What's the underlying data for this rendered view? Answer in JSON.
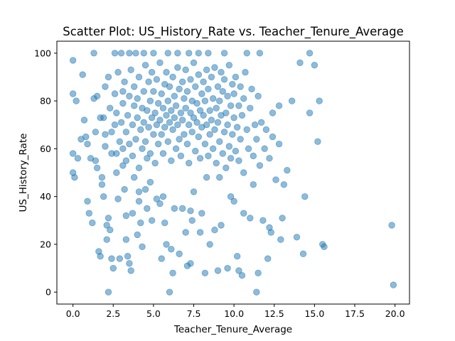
{
  "chart_data": {
    "type": "scatter",
    "title": "Scatter Plot: US_History_Rate vs. Teacher_Tenure_Average",
    "xlabel": "Teacher_Tenure_Average",
    "ylabel": "US_History_Rate",
    "xlim": [
      -1.0,
      20.9
    ],
    "ylim": [
      -5,
      105
    ],
    "xticks": [
      0.0,
      2.5,
      5.0,
      7.5,
      10.0,
      12.5,
      15.0,
      17.5,
      20.0
    ],
    "xtick_labels": [
      "0.0",
      "2.5",
      "5.0",
      "7.5",
      "10.0",
      "12.5",
      "15.0",
      "17.5",
      "20.0"
    ],
    "yticks": [
      0,
      20,
      40,
      60,
      80,
      100
    ],
    "ytick_labels": [
      "0",
      "20",
      "40",
      "60",
      "80",
      "100"
    ],
    "grid": false,
    "marker_color": "#1f77b4",
    "marker_alpha": 0.5,
    "series": [
      {
        "values": [
          [
            0.0,
            97
          ],
          [
            0.0,
            83
          ],
          [
            0.0,
            58
          ],
          [
            0.0,
            50
          ],
          [
            0.1,
            48
          ],
          [
            0.2,
            80
          ],
          [
            0.3,
            56
          ],
          [
            0.5,
            64
          ],
          [
            0.6,
            91
          ],
          [
            0.7,
            72
          ],
          [
            0.8,
            65
          ],
          [
            0.9,
            62
          ],
          [
            0.9,
            38
          ],
          [
            1.0,
            33
          ],
          [
            1.1,
            56
          ],
          [
            1.2,
            29
          ],
          [
            1.3,
            100
          ],
          [
            1.3,
            81
          ],
          [
            1.4,
            67
          ],
          [
            1.4,
            55
          ],
          [
            1.5,
            52
          ],
          [
            1.6,
            17
          ],
          [
            1.7,
            15
          ],
          [
            1.8,
            45
          ],
          [
            1.9,
            73
          ],
          [
            1.9,
            40
          ],
          [
            2.0,
            86
          ],
          [
            2.0,
            61
          ],
          [
            2.1,
            28
          ],
          [
            2.1,
            22
          ],
          [
            2.2,
            31
          ],
          [
            2.2,
            0
          ],
          [
            2.3,
            26
          ],
          [
            2.4,
            14
          ],
          [
            2.5,
            10
          ],
          [
            2.6,
            100
          ],
          [
            2.6,
            70
          ],
          [
            2.7,
            58
          ],
          [
            2.8,
            39
          ],
          [
            2.9,
            14
          ],
          [
            3.0,
            100
          ],
          [
            3.1,
            84
          ],
          [
            3.1,
            53
          ],
          [
            3.2,
            43
          ],
          [
            3.3,
            32
          ],
          [
            3.3,
            22
          ],
          [
            3.4,
            15
          ],
          [
            3.5,
            100
          ],
          [
            3.5,
            12
          ],
          [
            3.6,
            9
          ],
          [
            3.7,
            33
          ],
          [
            3.8,
            48
          ],
          [
            3.9,
            100
          ],
          [
            4.0,
            24
          ],
          [
            4.1,
            42
          ],
          [
            4.1,
            38
          ],
          [
            4.2,
            29
          ],
          [
            4.3,
            19
          ],
          [
            4.4,
            100
          ],
          [
            4.5,
            43
          ],
          [
            4.6,
            35
          ],
          [
            4.8,
            46
          ],
          [
            4.9,
            30
          ],
          [
            5.0,
            100
          ],
          [
            5.2,
            39
          ],
          [
            5.4,
            37
          ],
          [
            5.5,
            14
          ],
          [
            5.6,
            40
          ],
          [
            5.7,
            29
          ],
          [
            5.8,
            20
          ],
          [
            5.9,
            100
          ],
          [
            6.0,
            0
          ],
          [
            6.1,
            18
          ],
          [
            6.2,
            8
          ],
          [
            6.3,
            35
          ],
          [
            6.5,
            100
          ],
          [
            6.6,
            16
          ],
          [
            6.8,
            35
          ],
          [
            7.0,
            25
          ],
          [
            7.1,
            11
          ],
          [
            7.2,
            100
          ],
          [
            7.3,
            12
          ],
          [
            7.3,
            34
          ],
          [
            7.4,
            30
          ],
          [
            7.5,
            42
          ],
          [
            7.8,
            100
          ],
          [
            7.9,
            25
          ],
          [
            8.0,
            33
          ],
          [
            8.2,
            8
          ],
          [
            8.3,
            48
          ],
          [
            8.4,
            100
          ],
          [
            8.5,
            20
          ],
          [
            8.8,
            26
          ],
          [
            9.0,
            9
          ],
          [
            9.1,
            48
          ],
          [
            9.2,
            28
          ],
          [
            9.4,
            100
          ],
          [
            9.6,
            10
          ],
          [
            9.8,
            40
          ],
          [
            10.0,
            38
          ],
          [
            10.2,
            15
          ],
          [
            10.3,
            9
          ],
          [
            10.5,
            7
          ],
          [
            10.6,
            33
          ],
          [
            10.8,
            100
          ],
          [
            11.0,
            31
          ],
          [
            11.2,
            45
          ],
          [
            11.4,
            0
          ],
          [
            11.5,
            8
          ],
          [
            11.6,
            100
          ],
          [
            11.8,
            30
          ],
          [
            12.1,
            14
          ],
          [
            12.2,
            27
          ],
          [
            12.3,
            25
          ],
          [
            12.4,
            75
          ],
          [
            12.8,
            78
          ],
          [
            12.9,
            22
          ],
          [
            13.0,
            31
          ],
          [
            13.1,
            45
          ],
          [
            13.3,
            51
          ],
          [
            13.6,
            80
          ],
          [
            13.9,
            23
          ],
          [
            14.1,
            96
          ],
          [
            14.3,
            16
          ],
          [
            14.4,
            40
          ],
          [
            14.7,
            75
          ],
          [
            14.7,
            100
          ],
          [
            15.0,
            95
          ],
          [
            15.2,
            63
          ],
          [
            15.3,
            80
          ],
          [
            15.5,
            20
          ],
          [
            15.6,
            19
          ],
          [
            19.8,
            28
          ],
          [
            19.9,
            3
          ],
          [
            1.5,
            82
          ],
          [
            1.7,
            73
          ],
          [
            1.8,
            48
          ],
          [
            2.0,
            66
          ],
          [
            2.2,
            90
          ],
          [
            2.3,
            77
          ],
          [
            2.4,
            58
          ],
          [
            2.4,
            67
          ],
          [
            2.6,
            83
          ],
          [
            2.7,
            50
          ],
          [
            2.7,
            75
          ],
          [
            2.8,
            92
          ],
          [
            2.9,
            63
          ],
          [
            3.0,
            71
          ],
          [
            3.1,
            79
          ],
          [
            3.1,
            60
          ],
          [
            3.2,
            88
          ],
          [
            3.3,
            67
          ],
          [
            3.3,
            55
          ],
          [
            3.4,
            74
          ],
          [
            3.5,
            82
          ],
          [
            3.5,
            62
          ],
          [
            3.6,
            93
          ],
          [
            3.7,
            70
          ],
          [
            3.7,
            57
          ],
          [
            3.8,
            78
          ],
          [
            3.8,
            86
          ],
          [
            3.9,
            64
          ],
          [
            4.0,
            73
          ],
          [
            4.0,
            81
          ],
          [
            4.1,
            90
          ],
          [
            4.1,
            52
          ],
          [
            4.2,
            68
          ],
          [
            4.3,
            77
          ],
          [
            4.3,
            60
          ],
          [
            4.4,
            84
          ],
          [
            4.4,
            71
          ],
          [
            4.5,
            95
          ],
          [
            4.5,
            63
          ],
          [
            4.6,
            76
          ],
          [
            4.6,
            56
          ],
          [
            4.7,
            88
          ],
          [
            4.7,
            69
          ],
          [
            4.8,
            80
          ],
          [
            4.8,
            58
          ],
          [
            4.9,
            73
          ],
          [
            4.9,
            92
          ],
          [
            5.0,
            66
          ],
          [
            5.0,
            84
          ],
          [
            5.1,
            75
          ],
          [
            5.1,
            54
          ],
          [
            5.2,
            89
          ],
          [
            5.2,
            70
          ],
          [
            5.3,
            79
          ],
          [
            5.3,
            62
          ],
          [
            5.4,
            96
          ],
          [
            5.4,
            72
          ],
          [
            5.5,
            83
          ],
          [
            5.5,
            66
          ],
          [
            5.6,
            58
          ],
          [
            5.6,
            77
          ],
          [
            5.7,
            87
          ],
          [
            5.7,
            69
          ],
          [
            5.8,
            74
          ],
          [
            5.8,
            92
          ],
          [
            5.9,
            80
          ],
          [
            5.9,
            63
          ],
          [
            6.0,
            71
          ],
          [
            6.0,
            86
          ],
          [
            6.1,
            55
          ],
          [
            6.1,
            76
          ],
          [
            6.2,
            68
          ],
          [
            6.2,
            90
          ],
          [
            6.3,
            82
          ],
          [
            6.3,
            73
          ],
          [
            6.4,
            60
          ],
          [
            6.4,
            78
          ],
          [
            6.5,
            94
          ],
          [
            6.5,
            70
          ],
          [
            6.6,
            85
          ],
          [
            6.6,
            64
          ],
          [
            6.7,
            75
          ],
          [
            6.7,
            57
          ],
          [
            6.8,
            88
          ],
          [
            6.8,
            72
          ],
          [
            6.9,
            81
          ],
          [
            6.9,
            66
          ],
          [
            7.0,
            93
          ],
          [
            7.0,
            77
          ],
          [
            7.1,
            62
          ],
          [
            7.1,
            84
          ],
          [
            7.2,
            70
          ],
          [
            7.2,
            54
          ],
          [
            7.3,
            89
          ],
          [
            7.3,
            75
          ],
          [
            7.4,
            67
          ],
          [
            7.4,
            80
          ],
          [
            7.5,
            96
          ],
          [
            7.5,
            73
          ],
          [
            7.6,
            59
          ],
          [
            7.6,
            86
          ],
          [
            7.7,
            71
          ],
          [
            7.7,
            79
          ],
          [
            7.8,
            65
          ],
          [
            7.8,
            91
          ],
          [
            7.9,
            76
          ],
          [
            7.9,
            56
          ],
          [
            8.0,
            83
          ],
          [
            8.0,
            69
          ],
          [
            8.1,
            88
          ],
          [
            8.1,
            74
          ],
          [
            8.2,
            62
          ],
          [
            8.2,
            80
          ],
          [
            8.3,
            93
          ],
          [
            8.3,
            70
          ],
          [
            8.4,
            57
          ],
          [
            8.4,
            85
          ],
          [
            8.5,
            76
          ],
          [
            8.5,
            66
          ],
          [
            8.6,
            90
          ],
          [
            8.6,
            72
          ],
          [
            8.7,
            60
          ],
          [
            8.7,
            81
          ],
          [
            8.8,
            68
          ],
          [
            8.8,
            94
          ],
          [
            8.9,
            77
          ],
          [
            8.9,
            54
          ],
          [
            9.0,
            86
          ],
          [
            9.0,
            71
          ],
          [
            9.1,
            63
          ],
          [
            9.1,
            80
          ],
          [
            9.2,
            92
          ],
          [
            9.2,
            74
          ],
          [
            9.3,
            58
          ],
          [
            9.3,
            84
          ],
          [
            9.4,
            67
          ],
          [
            9.4,
            89
          ],
          [
            9.5,
            75
          ],
          [
            9.5,
            52
          ],
          [
            9.6,
            82
          ],
          [
            9.6,
            70
          ],
          [
            9.7,
            61
          ],
          [
            9.7,
            95
          ],
          [
            9.8,
            78
          ],
          [
            9.8,
            56
          ],
          [
            9.9,
            87
          ],
          [
            9.9,
            66
          ],
          [
            10.0,
            73
          ],
          [
            10.0,
            83
          ],
          [
            10.1,
            59
          ],
          [
            10.1,
            90
          ],
          [
            10.2,
            69
          ],
          [
            10.3,
            78
          ],
          [
            10.3,
            55
          ],
          [
            10.4,
            86
          ],
          [
            10.4,
            64
          ],
          [
            10.5,
            74
          ],
          [
            10.6,
            81
          ],
          [
            10.6,
            50
          ],
          [
            10.7,
            92
          ],
          [
            10.8,
            68
          ],
          [
            10.9,
            60
          ],
          [
            11.0,
            77
          ],
          [
            11.1,
            85
          ],
          [
            11.2,
            57
          ],
          [
            11.3,
            70
          ],
          [
            11.4,
            64
          ],
          [
            11.5,
            82
          ],
          [
            11.6,
            53
          ],
          [
            11.7,
            71
          ],
          [
            11.9,
            60
          ],
          [
            12.0,
            68
          ],
          [
            12.2,
            56
          ],
          [
            12.4,
            65
          ],
          [
            12.6,
            47
          ],
          [
            12.8,
            62
          ]
        ]
      }
    ]
  }
}
